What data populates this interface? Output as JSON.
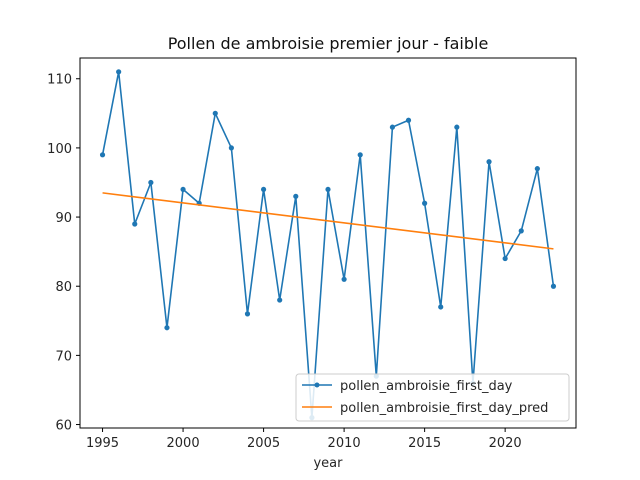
{
  "chart_data": {
    "type": "line",
    "title": "Pollen de ambroisie premier jour - faible",
    "xlabel": "year",
    "ylabel": "",
    "xlim": [
      1993.6,
      2024.4
    ],
    "ylim": [
      59.5,
      113.0
    ],
    "xticks": [
      1995,
      2000,
      2005,
      2010,
      2015,
      2020
    ],
    "yticks": [
      60,
      70,
      80,
      90,
      100,
      110
    ],
    "grid": false,
    "legend": "lower-right",
    "series": [
      {
        "name": "pollen_ambroisie_first_day",
        "color": "#1f77b4",
        "marker": "dot",
        "x": [
          1995,
          1996,
          1997,
          1998,
          1999,
          2000,
          2001,
          2002,
          2003,
          2004,
          2005,
          2006,
          2007,
          2008,
          2009,
          2010,
          2011,
          2012,
          2013,
          2014,
          2015,
          2016,
          2017,
          2018,
          2019,
          2020,
          2021,
          2022,
          2023
        ],
        "y": [
          99,
          111,
          89,
          95,
          74,
          94,
          92,
          105,
          100,
          76,
          94,
          78,
          93,
          61,
          94,
          81,
          99,
          67,
          103,
          104,
          92,
          77,
          103,
          66,
          98,
          84,
          88,
          97,
          80
        ]
      },
      {
        "name": "pollen_ambroisie_first_day_pred",
        "color": "#ff7f0e",
        "marker": "none",
        "x": [
          1995,
          2023
        ],
        "y": [
          93.5,
          85.4
        ]
      }
    ]
  }
}
